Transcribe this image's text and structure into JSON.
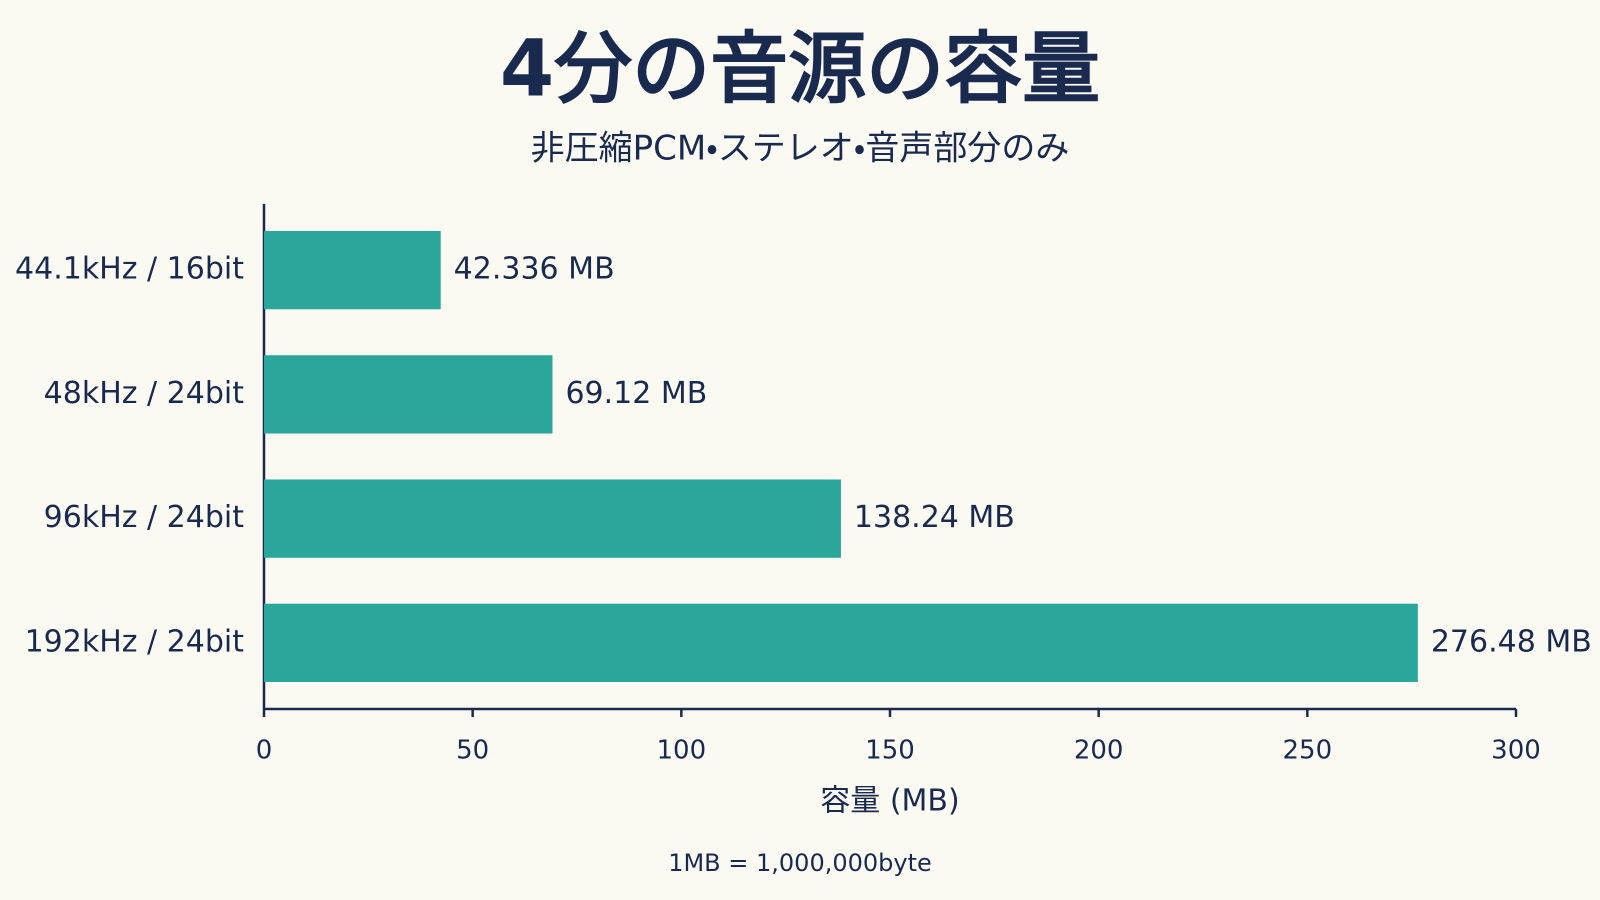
{
  "chart_data": {
    "type": "bar",
    "orientation": "horizontal",
    "title": "4分の音源の容量",
    "subtitle": "非圧縮PCM・ステレオ・音声部分のみ",
    "categories": [
      "44.1kHz / 16bit",
      "48kHz / 24bit",
      "96kHz / 24bit",
      "192kHz / 24bit"
    ],
    "values": [
      42.336,
      69.12,
      138.24,
      276.48
    ],
    "value_labels": [
      "42.336 MB",
      "69.12 MB",
      "138.24 MB",
      "276.48 MB"
    ],
    "color": "#2aa69b",
    "xlim": [
      0,
      300
    ],
    "xticks": [
      0,
      50,
      100,
      150,
      200,
      250,
      300
    ],
    "xlabel": "容量 (MB)",
    "note": "1MB = 1,000,000byte",
    "grid": false
  }
}
